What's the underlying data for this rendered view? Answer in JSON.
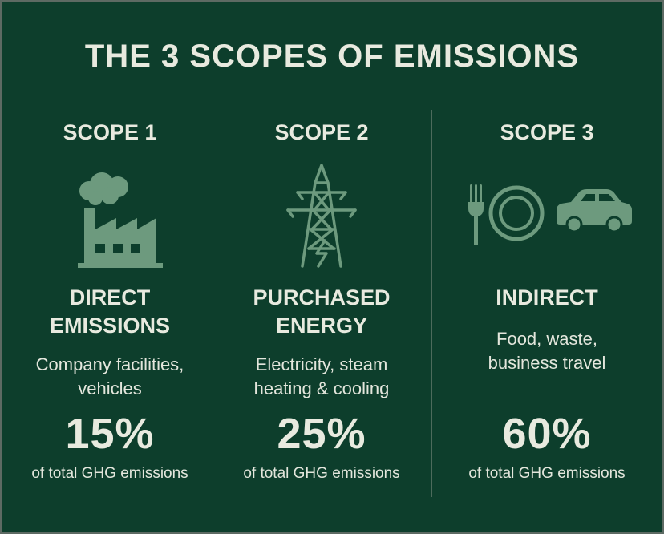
{
  "title": "THE 3 SCOPES OF EMISSIONS",
  "colors": {
    "background": "#0d3e2c",
    "icon": "#6d9a7e",
    "text": "#e8eadf"
  },
  "scopes": [
    {
      "label": "SCOPE 1",
      "icon": "factory-icon",
      "heading": [
        "DIRECT",
        "EMISSIONS"
      ],
      "description": [
        "Company facilities,",
        "vehicles"
      ],
      "percent": "15%",
      "note": "of total GHG emissions"
    },
    {
      "label": "SCOPE 2",
      "icon": "power-tower-icon",
      "heading": [
        "PURCHASED",
        "ENERGY"
      ],
      "description": [
        "Electricity, steam",
        "heating & cooling"
      ],
      "percent": "25%",
      "note": "of total GHG emissions"
    },
    {
      "label": "SCOPE 3",
      "icon": "fork-plate-car-icon",
      "heading": [
        "INDIRECT"
      ],
      "description": [
        "Food, waste,",
        "business travel"
      ],
      "percent": "60%",
      "note": "of total GHG emissions"
    }
  ]
}
